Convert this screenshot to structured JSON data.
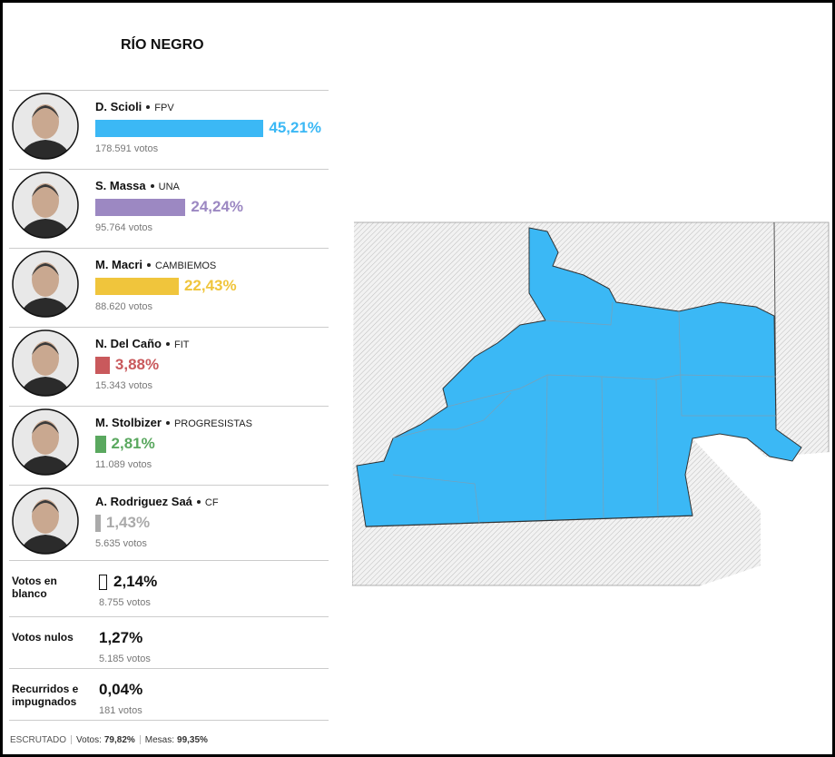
{
  "title": "RÍO NEGRO",
  "candidates": [
    {
      "name": "D. Scioli",
      "party": "FPV",
      "color": "#3bb8f5",
      "share": 45.21,
      "share_label": "45,21%",
      "votes": "178.591 votos"
    },
    {
      "name": "S. Massa",
      "party": "UNA",
      "color": "#9c88c2",
      "share": 24.24,
      "share_label": "24,24%",
      "votes": "95.764 votos"
    },
    {
      "name": "M. Macri",
      "party": "CAMBIEMOS",
      "color": "#f0c53c",
      "share": 22.43,
      "share_label": "22,43%",
      "votes": "88.620 votos"
    },
    {
      "name": "N. Del Caño",
      "party": "FIT",
      "color": "#c9595c",
      "share": 3.88,
      "share_label": "3,88%",
      "votes": "15.343 votos"
    },
    {
      "name": "M. Stolbizer",
      "party": "PROGRESISTAS",
      "color": "#5aa85f",
      "share": 2.81,
      "share_label": "2,81%",
      "votes": "11.089 votos"
    },
    {
      "name": "A. Rodriguez Saá",
      "party": "CF",
      "color": "#aaaaaa",
      "share": 1.43,
      "share_label": "1,43%",
      "votes": "5.635 votos"
    }
  ],
  "other_rows": [
    {
      "label": "Votos en blanco",
      "share": 2.14,
      "share_label": "2,14%",
      "votes": "8.755 votos"
    },
    {
      "label": "Votos nulos",
      "share": 1.27,
      "share_label": "1,27%",
      "votes": "5.185 votos"
    },
    {
      "label": "Recurridos e impugnados",
      "share": 0.04,
      "share_label": "0,04%",
      "votes": "181 votos"
    }
  ],
  "footer": {
    "status": "ESCRUTADO",
    "votes_label": "Votos:",
    "votes_value": "79,82%",
    "tables_label": "Mesas:",
    "tables_value": "99,35%"
  }
}
